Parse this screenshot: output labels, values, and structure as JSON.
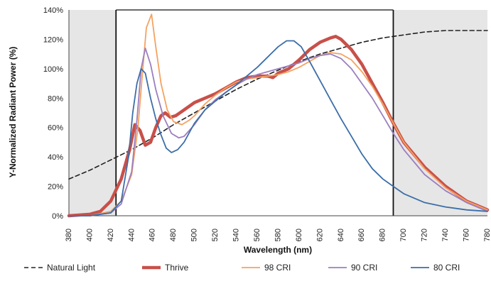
{
  "chart_data": {
    "type": "line",
    "xlabel": "Wavelength (nm)",
    "ylabel": "Y-Normalized Radiant Power (%)",
    "xlim": [
      380,
      780
    ],
    "ylim": [
      0,
      140
    ],
    "x_ticks": [
      "380",
      "400",
      "420",
      "440",
      "460",
      "480",
      "500",
      "520",
      "540",
      "560",
      "580",
      "600",
      "620",
      "640",
      "660",
      "680",
      "700",
      "720",
      "740",
      "760",
      "780"
    ],
    "y_ticks": [
      "0%",
      "20%",
      "40%",
      "60%",
      "80%",
      "100%",
      "120%",
      "140%"
    ],
    "grid": false,
    "shaded_regions": [
      [
        380,
        425
      ],
      [
        690,
        780
      ]
    ],
    "boundary_lines": [
      425,
      690
    ],
    "legend_position": "bottom",
    "series": [
      {
        "name": "Natural Light",
        "color": "#222222",
        "style": "dashed",
        "points": [
          [
            380,
            25
          ],
          [
            400,
            31
          ],
          [
            420,
            38
          ],
          [
            440,
            45
          ],
          [
            460,
            53
          ],
          [
            480,
            62
          ],
          [
            500,
            70
          ],
          [
            520,
            78
          ],
          [
            540,
            86
          ],
          [
            560,
            93
          ],
          [
            580,
            99
          ],
          [
            600,
            105
          ],
          [
            620,
            110
          ],
          [
            640,
            114
          ],
          [
            660,
            118
          ],
          [
            680,
            121
          ],
          [
            700,
            123
          ],
          [
            720,
            125
          ],
          [
            740,
            126
          ],
          [
            760,
            126
          ],
          [
            780,
            126
          ]
        ]
      },
      {
        "name": "Thrive",
        "color": "#c8504a",
        "style": "bold",
        "points": [
          [
            380,
            0
          ],
          [
            400,
            1
          ],
          [
            410,
            3
          ],
          [
            420,
            10
          ],
          [
            430,
            25
          ],
          [
            438,
            45
          ],
          [
            443,
            62
          ],
          [
            448,
            58
          ],
          [
            453,
            48
          ],
          [
            458,
            50
          ],
          [
            463,
            60
          ],
          [
            468,
            68
          ],
          [
            472,
            70
          ],
          [
            477,
            67
          ],
          [
            482,
            68
          ],
          [
            490,
            72
          ],
          [
            500,
            77
          ],
          [
            510,
            80
          ],
          [
            520,
            83
          ],
          [
            530,
            87
          ],
          [
            540,
            91
          ],
          [
            550,
            94
          ],
          [
            560,
            95
          ],
          [
            570,
            95
          ],
          [
            575,
            94
          ],
          [
            580,
            97
          ],
          [
            590,
            100
          ],
          [
            600,
            106
          ],
          [
            610,
            113
          ],
          [
            620,
            118
          ],
          [
            630,
            121
          ],
          [
            635,
            122
          ],
          [
            640,
            120
          ],
          [
            650,
            113
          ],
          [
            660,
            103
          ],
          [
            670,
            90
          ],
          [
            680,
            77
          ],
          [
            690,
            63
          ],
          [
            700,
            50
          ],
          [
            720,
            33
          ],
          [
            740,
            20
          ],
          [
            760,
            10
          ],
          [
            770,
            7
          ],
          [
            780,
            4
          ]
        ]
      },
      {
        "name": "98 CRI",
        "color": "#f4a261",
        "style": "solid",
        "points": [
          [
            380,
            0
          ],
          [
            400,
            0
          ],
          [
            420,
            3
          ],
          [
            430,
            10
          ],
          [
            440,
            28
          ],
          [
            446,
            60
          ],
          [
            450,
            95
          ],
          [
            454,
            128
          ],
          [
            459,
            137
          ],
          [
            463,
            115
          ],
          [
            468,
            90
          ],
          [
            474,
            72
          ],
          [
            480,
            64
          ],
          [
            488,
            62
          ],
          [
            495,
            65
          ],
          [
            500,
            68
          ],
          [
            510,
            76
          ],
          [
            520,
            82
          ],
          [
            530,
            87
          ],
          [
            540,
            91
          ],
          [
            550,
            93
          ],
          [
            560,
            94
          ],
          [
            570,
            95
          ],
          [
            580,
            96
          ],
          [
            590,
            98
          ],
          [
            600,
            101
          ],
          [
            610,
            105
          ],
          [
            620,
            109
          ],
          [
            630,
            111
          ],
          [
            640,
            110
          ],
          [
            650,
            106
          ],
          [
            660,
            98
          ],
          [
            670,
            88
          ],
          [
            680,
            76
          ],
          [
            690,
            63
          ],
          [
            700,
            50
          ],
          [
            720,
            32
          ],
          [
            740,
            19
          ],
          [
            760,
            10
          ],
          [
            770,
            7
          ],
          [
            780,
            4
          ]
        ]
      },
      {
        "name": "90 CRI",
        "color": "#9b7fc0",
        "style": "solid",
        "points": [
          [
            380,
            0
          ],
          [
            400,
            0
          ],
          [
            420,
            2
          ],
          [
            430,
            8
          ],
          [
            440,
            30
          ],
          [
            445,
            65
          ],
          [
            449,
            100
          ],
          [
            453,
            114
          ],
          [
            458,
            103
          ],
          [
            463,
            86
          ],
          [
            470,
            68
          ],
          [
            478,
            56
          ],
          [
            485,
            53
          ],
          [
            490,
            54
          ],
          [
            500,
            62
          ],
          [
            510,
            72
          ],
          [
            520,
            79
          ],
          [
            530,
            84
          ],
          [
            540,
            89
          ],
          [
            550,
            93
          ],
          [
            560,
            96
          ],
          [
            570,
            98
          ],
          [
            580,
            100
          ],
          [
            590,
            102
          ],
          [
            600,
            104
          ],
          [
            610,
            107
          ],
          [
            620,
            109
          ],
          [
            630,
            110
          ],
          [
            640,
            107
          ],
          [
            650,
            100
          ],
          [
            660,
            90
          ],
          [
            670,
            80
          ],
          [
            680,
            68
          ],
          [
            690,
            56
          ],
          [
            700,
            45
          ],
          [
            720,
            28
          ],
          [
            740,
            17
          ],
          [
            760,
            9
          ],
          [
            770,
            6
          ],
          [
            780,
            3
          ]
        ]
      },
      {
        "name": "80 CRI",
        "color": "#3c6ea8",
        "style": "solid",
        "points": [
          [
            380,
            0
          ],
          [
            400,
            0
          ],
          [
            420,
            2
          ],
          [
            430,
            10
          ],
          [
            437,
            40
          ],
          [
            441,
            70
          ],
          [
            445,
            90
          ],
          [
            449,
            100
          ],
          [
            453,
            97
          ],
          [
            458,
            80
          ],
          [
            463,
            66
          ],
          [
            468,
            55
          ],
          [
            473,
            46
          ],
          [
            478,
            43
          ],
          [
            484,
            45
          ],
          [
            490,
            50
          ],
          [
            500,
            63
          ],
          [
            510,
            72
          ],
          [
            520,
            78
          ],
          [
            530,
            84
          ],
          [
            540,
            89
          ],
          [
            550,
            95
          ],
          [
            560,
            101
          ],
          [
            570,
            108
          ],
          [
            580,
            115
          ],
          [
            588,
            119
          ],
          [
            595,
            119
          ],
          [
            602,
            115
          ],
          [
            610,
            105
          ],
          [
            620,
            92
          ],
          [
            630,
            79
          ],
          [
            640,
            66
          ],
          [
            650,
            54
          ],
          [
            660,
            42
          ],
          [
            670,
            32
          ],
          [
            680,
            25
          ],
          [
            690,
            20
          ],
          [
            700,
            15
          ],
          [
            720,
            9
          ],
          [
            740,
            6
          ],
          [
            760,
            4
          ],
          [
            780,
            3
          ]
        ]
      }
    ]
  }
}
